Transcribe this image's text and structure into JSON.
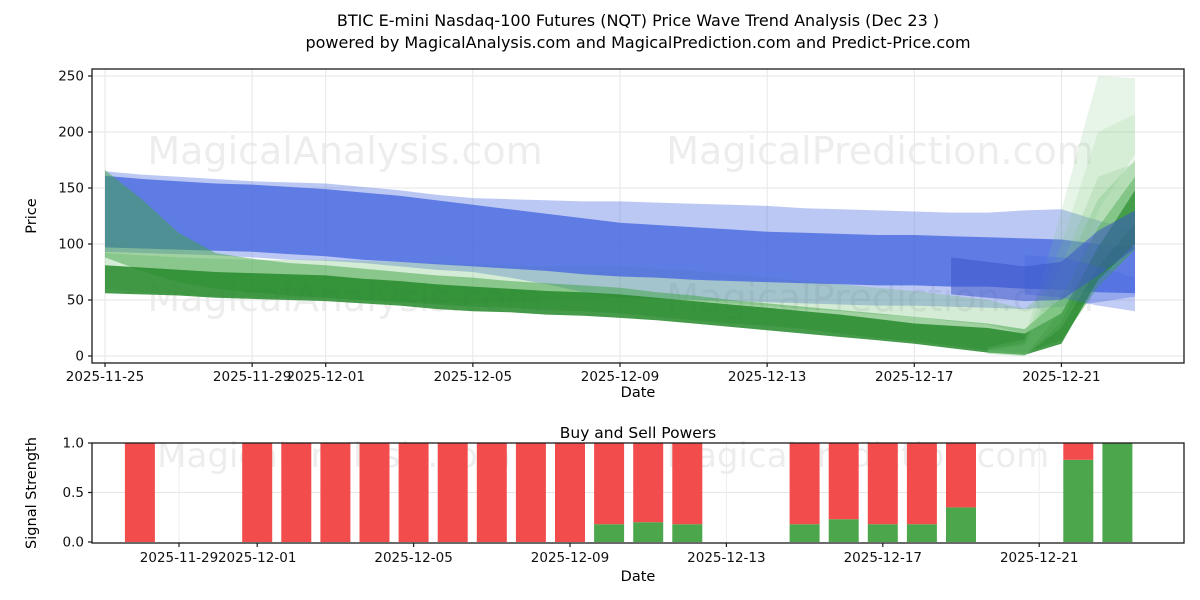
{
  "figure": {
    "title_line1": "BTIC E-mini Nasdaq-100 Futures (NQT) Price Wave Trend Analysis (Dec 23 )",
    "title_line2": "powered by MagicalAnalysis.com and MagicalPrediction.com and Predict-Price.com",
    "background": "#ffffff"
  },
  "watermarks": {
    "left_text": "MagicalAnalysis.com",
    "right_text": "MagicalPrediction.com"
  },
  "labels": {
    "top_ylabel": "Price",
    "top_xlabel": "Date",
    "bottom_title": "Buy and Sell Powers",
    "bottom_ylabel": "Signal Strength",
    "bottom_xlabel": "Date"
  },
  "chart_data": [
    {
      "type": "area",
      "title": "BTIC E-mini Nasdaq-100 Futures (NQT) Price Wave Trend Analysis (Dec 23 )",
      "xlabel": "Date",
      "ylabel": "Price",
      "ylim": [
        -6,
        256
      ],
      "yticks": [
        0,
        50,
        100,
        150,
        200,
        250
      ],
      "grid": true,
      "legend": "none",
      "dates": [
        "2025-11-25",
        "2025-11-26",
        "2025-11-27",
        "2025-11-28",
        "2025-11-29",
        "2025-11-30",
        "2025-12-01",
        "2025-12-02",
        "2025-12-03",
        "2025-12-04",
        "2025-12-05",
        "2025-12-06",
        "2025-12-07",
        "2025-12-08",
        "2025-12-09",
        "2025-12-10",
        "2025-12-11",
        "2025-12-12",
        "2025-12-13",
        "2025-12-14",
        "2025-12-15",
        "2025-12-16",
        "2025-12-17",
        "2025-12-18",
        "2025-12-19",
        "2025-12-20",
        "2025-12-21",
        "2025-12-22",
        "2025-12-23"
      ],
      "xtick_indices": [
        0,
        4,
        6,
        10,
        14,
        18,
        22,
        26
      ],
      "xtick_labels": [
        "2025-11-25",
        "2025-11-29",
        "2025-12-01",
        "2025-12-05",
        "2025-12-09",
        "2025-12-13",
        "2025-12-17",
        "2025-12-21"
      ],
      "bands": [
        {
          "name": "blue-pale-envelope",
          "color": "#4566E0",
          "opacity": 0.36,
          "start": 0,
          "lo": [
            93,
            92,
            91,
            90,
            88,
            86,
            85,
            83,
            80,
            77,
            75,
            70,
            64,
            57,
            52,
            51,
            50,
            49,
            48,
            47,
            46,
            45,
            45,
            44,
            43,
            42,
            44,
            48,
            53
          ],
          "hi": [
            165,
            162,
            160,
            158,
            156,
            155,
            154,
            151,
            148,
            144,
            141,
            140,
            139,
            138,
            138,
            137,
            136,
            135,
            134,
            132,
            131,
            130,
            129,
            128,
            128,
            130,
            131,
            121,
            112
          ]
        },
        {
          "name": "green-pale-band",
          "color": "#63B868",
          "opacity": 0.28,
          "start": 0,
          "lo": [
            60,
            57,
            55,
            53,
            52,
            52,
            52,
            50,
            49,
            48,
            47,
            48,
            50,
            51,
            52,
            51,
            50,
            47,
            45,
            42,
            40,
            37,
            35,
            31,
            28,
            20,
            30,
            80,
            110
          ],
          "hi": [
            92,
            90,
            88,
            87,
            86,
            86,
            86,
            85,
            84,
            83,
            82,
            81,
            80,
            80,
            80,
            78,
            76,
            73,
            70,
            67,
            64,
            61,
            58,
            54,
            50,
            42,
            70,
            140,
            175
          ]
        },
        {
          "name": "blue-core-wave",
          "color": "#4566E0",
          "opacity": 0.78,
          "start": 0,
          "lo": [
            97,
            96,
            95,
            94,
            93,
            91,
            89,
            86,
            84,
            82,
            80,
            78,
            76,
            73,
            71,
            70,
            68,
            67,
            66,
            65,
            64,
            63,
            63,
            62,
            62,
            60,
            59,
            57,
            56
          ],
          "hi": [
            161,
            158,
            156,
            154,
            153,
            151,
            149,
            146,
            143,
            139,
            135,
            131,
            127,
            123,
            119,
            117,
            115,
            113,
            111,
            110,
            109,
            108,
            108,
            107,
            106,
            105,
            104,
            100,
            97
          ]
        },
        {
          "name": "green-mid-band",
          "color": "#3FA344",
          "opacity": 0.5,
          "start": 0,
          "lo": [
            88,
            76,
            66,
            60,
            57,
            54,
            52,
            50,
            48,
            46,
            44,
            43,
            41,
            40,
            38,
            35,
            32,
            29,
            27,
            24,
            20,
            16,
            13,
            9,
            5,
            3,
            14,
            62,
            95
          ],
          "hi": [
            166,
            140,
            110,
            92,
            87,
            83,
            81,
            78,
            75,
            72,
            70,
            67,
            65,
            63,
            61,
            57,
            54,
            50,
            47,
            44,
            41,
            38,
            35,
            32,
            29,
            24,
            52,
            115,
            160
          ]
        },
        {
          "name": "green-dark-wave",
          "color": "#268A2B",
          "opacity": 0.85,
          "start": 0,
          "lo": [
            56,
            55,
            54,
            52,
            51,
            50,
            49,
            47,
            45,
            42,
            40,
            39,
            37,
            36,
            34,
            32,
            29,
            26,
            23,
            20,
            17,
            14,
            11,
            7,
            3,
            1,
            11,
            68,
            100
          ],
          "hi": [
            81,
            79,
            77,
            75,
            74,
            73,
            72,
            69,
            67,
            64,
            62,
            60,
            58,
            57,
            55,
            52,
            49,
            46,
            43,
            40,
            37,
            33,
            29,
            27,
            25,
            20,
            38,
            97,
            148
          ]
        },
        {
          "name": "green-fan-high",
          "color": "#7CC67F",
          "opacity": 0.18,
          "start": 24,
          "lo": [
            2,
            0,
            40,
            130,
            180
          ],
          "hi": [
            8,
            15,
            130,
            250,
            248
          ]
        },
        {
          "name": "green-fan-mid",
          "color": "#7CC67F",
          "opacity": 0.16,
          "start": 24,
          "lo": [
            2,
            0,
            30,
            100,
            150
          ],
          "hi": [
            6,
            12,
            100,
            200,
            216
          ]
        },
        {
          "name": "green-fan-low",
          "color": "#7CC67F",
          "opacity": 0.22,
          "start": 24,
          "lo": [
            2,
            0,
            25,
            80,
            118
          ],
          "hi": [
            5,
            10,
            80,
            160,
            172
          ]
        },
        {
          "name": "blue-pale-tail",
          "color": "#4566E0",
          "opacity": 0.33,
          "start": 25,
          "lo": [
            55,
            52,
            45,
            40
          ],
          "hi": [
            90,
            88,
            80,
            70
          ]
        },
        {
          "name": "blue-end-rise",
          "color": "#3C55C8",
          "opacity": 0.55,
          "start": 23,
          "lo": [
            55,
            52,
            49,
            50,
            72,
            96
          ],
          "hi": [
            88,
            84,
            80,
            84,
            112,
            130
          ]
        }
      ]
    },
    {
      "type": "bar",
      "title": "Buy and Sell Powers",
      "xlabel": "Date",
      "ylabel": "Signal Strength",
      "ylim": [
        0,
        1.0
      ],
      "yticks": [
        0.0,
        0.5,
        1.0
      ],
      "ytick_labels": [
        "0.0",
        "0.5",
        "1.0"
      ],
      "grid": true,
      "legend": "none",
      "stacked": true,
      "buy_color": "#4CA64C",
      "sell_color": "#F24C4C",
      "xtick_labels": [
        "2025-11-29",
        "2025-12-01",
        "2025-12-05",
        "2025-12-09",
        "2025-12-13",
        "2025-12-17",
        "2025-12-21"
      ],
      "bars": [
        {
          "date": "2025-11-28",
          "buy": 0.0,
          "sell": 1.0
        },
        {
          "date": "2025-12-01",
          "buy": 0.0,
          "sell": 1.0
        },
        {
          "date": "2025-12-02",
          "buy": 0.0,
          "sell": 1.0
        },
        {
          "date": "2025-12-03",
          "buy": 0.0,
          "sell": 1.0
        },
        {
          "date": "2025-12-04",
          "buy": 0.0,
          "sell": 1.0
        },
        {
          "date": "2025-12-05",
          "buy": 0.0,
          "sell": 1.0
        },
        {
          "date": "2025-12-06",
          "buy": 0.0,
          "sell": 1.0
        },
        {
          "date": "2025-12-07",
          "buy": 0.0,
          "sell": 1.0
        },
        {
          "date": "2025-12-08",
          "buy": 0.0,
          "sell": 1.0
        },
        {
          "date": "2025-12-09",
          "buy": 0.0,
          "sell": 1.0
        },
        {
          "date": "2025-12-10",
          "buy": 0.18,
          "sell": 0.82
        },
        {
          "date": "2025-12-11",
          "buy": 0.2,
          "sell": 0.8
        },
        {
          "date": "2025-12-12",
          "buy": 0.18,
          "sell": 0.82
        },
        {
          "date": "2025-12-15",
          "buy": 0.18,
          "sell": 0.82
        },
        {
          "date": "2025-12-16",
          "buy": 0.23,
          "sell": 0.77
        },
        {
          "date": "2025-12-17",
          "buy": 0.18,
          "sell": 0.82
        },
        {
          "date": "2025-12-18",
          "buy": 0.18,
          "sell": 0.82
        },
        {
          "date": "2025-12-19",
          "buy": 0.35,
          "sell": 0.65
        },
        {
          "date": "2025-12-22",
          "buy": 0.83,
          "sell": 0.17
        },
        {
          "date": "2025-12-23",
          "buy": 1.0,
          "sell": 0.0
        }
      ]
    }
  ]
}
